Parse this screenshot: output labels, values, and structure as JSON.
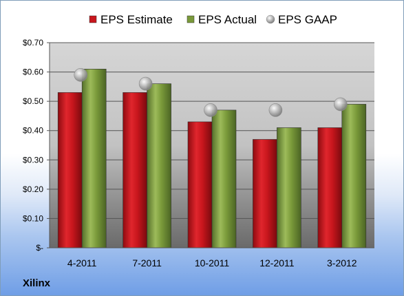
{
  "company": "Xilinx",
  "chart_data": {
    "type": "bar",
    "categories": [
      "4-2011",
      "7-2011",
      "10-2011",
      "12-2011",
      "3-2012"
    ],
    "series": [
      {
        "name": "EPS Estimate",
        "kind": "bar",
        "color": "#c8161d",
        "values": [
          0.53,
          0.53,
          0.43,
          0.37,
          0.41
        ]
      },
      {
        "name": "EPS Actual",
        "kind": "bar",
        "color": "#7a9a3a",
        "values": [
          0.61,
          0.56,
          0.47,
          0.41,
          0.49
        ]
      },
      {
        "name": "EPS GAAP",
        "kind": "marker",
        "color": "#a8a8a8",
        "values": [
          0.59,
          0.56,
          0.47,
          0.47,
          0.49
        ]
      }
    ],
    "y_ticks": [
      0,
      0.1,
      0.2,
      0.3,
      0.4,
      0.5,
      0.6,
      0.7
    ],
    "y_tick_labels": [
      "$-",
      "$0.10",
      "$0.20",
      "$0.30",
      "$0.40",
      "$0.50",
      "$0.60",
      "$0.70"
    ],
    "ylim": [
      0,
      0.7
    ],
    "grid": true,
    "legend_position": "top"
  }
}
